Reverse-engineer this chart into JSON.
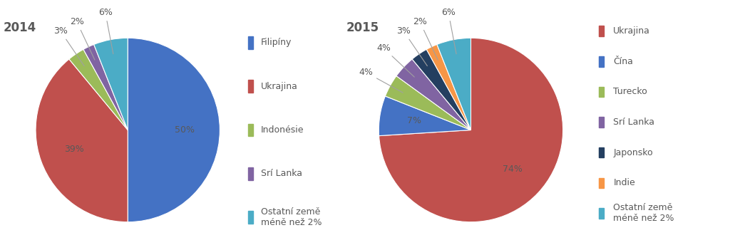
{
  "chart2014": {
    "title": "2014",
    "labels": [
      "Filipíny",
      "Ukrajina",
      "Indonésie",
      "Srí Lanka",
      "Ostatní země\nméně než 2%"
    ],
    "values": [
      50,
      39,
      3,
      2,
      6
    ],
    "colors": [
      "#4472C4",
      "#C0504D",
      "#9BBB59",
      "#8064A2",
      "#4BACC6"
    ],
    "pct_labels": [
      "50%",
      "39%",
      "3%",
      "2%",
      "6%"
    ],
    "pct_colors": [
      "#595959",
      "#595959",
      "#595959",
      "#595959",
      "#595959"
    ]
  },
  "chart2015": {
    "title": "2015",
    "labels": [
      "Ukrajina",
      "Čína",
      "Turecko",
      "Srí Lanka",
      "Japonsko",
      "Indie",
      "Ostatní země\nméně než 2%"
    ],
    "values": [
      74,
      7,
      4,
      4,
      3,
      2,
      6
    ],
    "colors": [
      "#C0504D",
      "#4472C4",
      "#9BBB59",
      "#8064A2",
      "#243F60",
      "#F79646",
      "#4BACC6"
    ],
    "pct_labels": [
      "74%",
      "7%",
      "4%",
      "4%",
      "3%",
      "2%",
      "6%"
    ],
    "pct_colors": [
      "#595959",
      "#595959",
      "#595959",
      "#595959",
      "#595959",
      "#595959",
      "#595959"
    ]
  },
  "legend2014": {
    "labels": [
      "Filipíny",
      "Ukrajina",
      "Indonésie",
      "Srí Lanka",
      "Ostatní země\nméně než 2%"
    ],
    "colors": [
      "#4472C4",
      "#C0504D",
      "#9BBB59",
      "#8064A2",
      "#4BACC6"
    ]
  },
  "legend2015": {
    "labels": [
      "Ukrajina",
      "Čína",
      "Turecko",
      "Srí Lanka",
      "Japonsko",
      "Indie",
      "Ostatní země\nméně než 2%"
    ],
    "colors": [
      "#C0504D",
      "#4472C4",
      "#9BBB59",
      "#8064A2",
      "#243F60",
      "#F79646",
      "#4BACC6"
    ]
  },
  "bg_color": "#FFFFFF",
  "text_color": "#595959",
  "title_fontsize": 12,
  "label_fontsize": 9,
  "legend_fontsize": 9
}
